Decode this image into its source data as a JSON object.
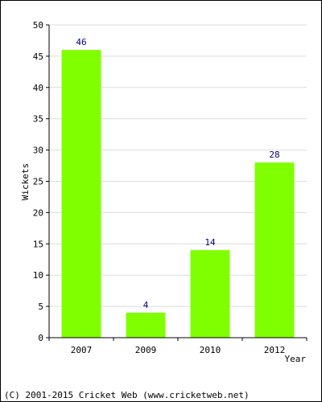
{
  "chart_data": {
    "type": "bar",
    "categories": [
      "2007",
      "2009",
      "2010",
      "2012"
    ],
    "values": [
      46,
      4,
      14,
      28
    ],
    "xlabel": "Year",
    "ylabel": "Wickets",
    "ylim": [
      0,
      50
    ],
    "yticks": [
      0,
      5,
      10,
      15,
      20,
      25,
      30,
      35,
      40,
      45,
      50
    ],
    "grid": true,
    "bar_color": "#80ff00",
    "data_label_color": "#000080"
  },
  "footer": {
    "copyright": "(C) 2001-2015 Cricket Web (www.cricketweb.net)"
  }
}
